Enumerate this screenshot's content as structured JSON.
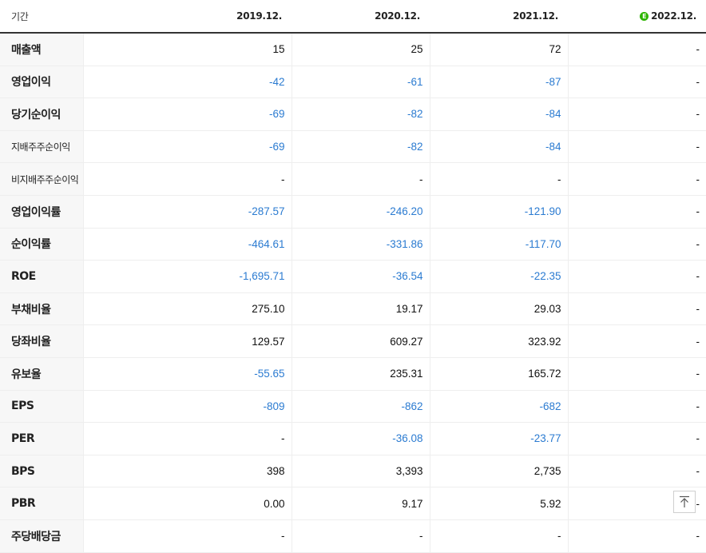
{
  "header": {
    "period_label": "기간",
    "periods": [
      "2019.12.",
      "2020.12.",
      "2021.12.",
      "2022.12."
    ],
    "estimate_icon": "E"
  },
  "rows": [
    {
      "label": "매출액",
      "values": [
        "15",
        "25",
        "72",
        "-"
      ]
    },
    {
      "label": "영업이익",
      "values": [
        "-42",
        "-61",
        "-87",
        "-"
      ]
    },
    {
      "label": "당기순이익",
      "values": [
        "-69",
        "-82",
        "-84",
        "-"
      ]
    },
    {
      "label": "지배주주순이익",
      "values": [
        "-69",
        "-82",
        "-84",
        "-"
      ]
    },
    {
      "label": "비지배주주순이익",
      "values": [
        "-",
        "-",
        "-",
        "-"
      ]
    },
    {
      "label": "영업이익률",
      "values": [
        "-287.57",
        "-246.20",
        "-121.90",
        "-"
      ]
    },
    {
      "label": "순이익률",
      "values": [
        "-464.61",
        "-331.86",
        "-117.70",
        "-"
      ]
    },
    {
      "label": "ROE",
      "values": [
        "-1,695.71",
        "-36.54",
        "-22.35",
        "-"
      ]
    },
    {
      "label": "부채비율",
      "values": [
        "275.10",
        "19.17",
        "29.03",
        "-"
      ]
    },
    {
      "label": "당좌비율",
      "values": [
        "129.57",
        "609.27",
        "323.92",
        "-"
      ]
    },
    {
      "label": "유보율",
      "values": [
        "-55.65",
        "235.31",
        "165.72",
        "-"
      ]
    },
    {
      "label": "EPS",
      "values": [
        "-809",
        "-862",
        "-682",
        "-"
      ]
    },
    {
      "label": "PER",
      "values": [
        "-",
        "-36.08",
        "-23.77",
        "-"
      ]
    },
    {
      "label": "BPS",
      "values": [
        "398",
        "3,393",
        "2,735",
        "-"
      ]
    },
    {
      "label": "PBR",
      "values": [
        "0.00",
        "9.17",
        "5.92",
        "-"
      ]
    },
    {
      "label": "주당배당금",
      "values": [
        "-",
        "-",
        "-",
        "-"
      ]
    }
  ],
  "colors": {
    "negative": "#2b7bd1",
    "estimate": "#2db400"
  },
  "icons": {
    "scroll_top": "arrow-up-to-top-icon"
  }
}
